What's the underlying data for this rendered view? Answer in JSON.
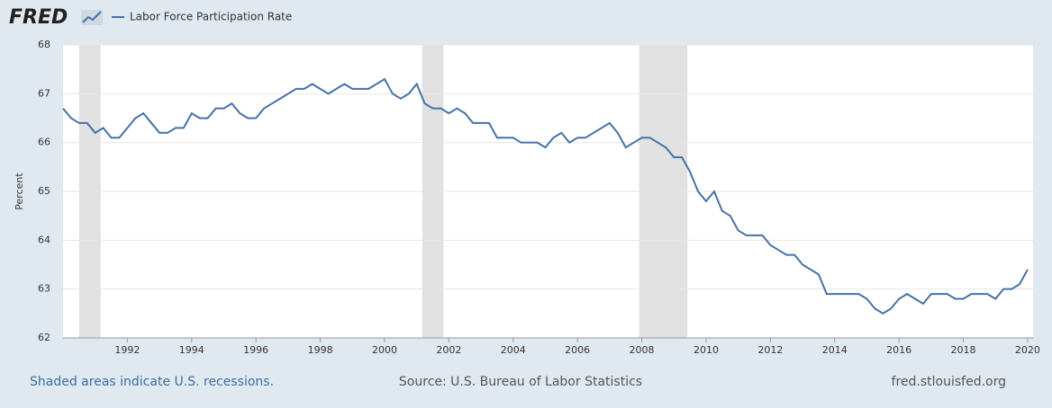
{
  "chart_data": {
    "type": "line",
    "logo": "FRED",
    "legend_position": "top-left",
    "y_label": "Percent",
    "footer_note": "Shaded areas indicate U.S. recessions.",
    "source": "Source: U.S. Bureau of Labor Statistics",
    "site": "fred.stlouisfed.org",
    "xlim": [
      1990,
      2020.17
    ],
    "xticks": [
      1992,
      1994,
      1996,
      1998,
      2000,
      2002,
      2004,
      2006,
      2008,
      2010,
      2012,
      2014,
      2016,
      2018,
      2020
    ],
    "ylim": [
      62,
      68
    ],
    "yticks": [
      62,
      63,
      64,
      65,
      66,
      67,
      68
    ],
    "grid": true,
    "recession_color": "#e1e1e1",
    "recessions": [
      [
        1990.5,
        1991.17
      ],
      [
        2001.17,
        2001.83
      ],
      [
        2007.92,
        2009.42
      ]
    ],
    "x": [
      1990,
      1990.25,
      1990.5,
      1990.75,
      1991,
      1991.25,
      1991.5,
      1991.75,
      1992,
      1992.25,
      1992.5,
      1992.75,
      1993,
      1993.25,
      1993.5,
      1993.75,
      1994,
      1994.25,
      1994.5,
      1994.75,
      1995,
      1995.25,
      1995.5,
      1995.75,
      1996,
      1996.25,
      1996.5,
      1996.75,
      1997,
      1997.25,
      1997.5,
      1997.75,
      1998,
      1998.25,
      1998.5,
      1998.75,
      1999,
      1999.25,
      1999.5,
      1999.75,
      2000,
      2000.25,
      2000.5,
      2000.75,
      2001,
      2001.25,
      2001.5,
      2001.75,
      2002,
      2002.25,
      2002.5,
      2002.75,
      2003,
      2003.25,
      2003.5,
      2003.75,
      2004,
      2004.25,
      2004.5,
      2004.75,
      2005,
      2005.25,
      2005.5,
      2005.75,
      2006,
      2006.25,
      2006.5,
      2006.75,
      2007,
      2007.25,
      2007.5,
      2007.75,
      2008,
      2008.25,
      2008.5,
      2008.75,
      2009,
      2009.25,
      2009.5,
      2009.75,
      2010,
      2010.25,
      2010.5,
      2010.75,
      2011,
      2011.25,
      2011.5,
      2011.75,
      2012,
      2012.25,
      2012.5,
      2012.75,
      2013,
      2013.25,
      2013.5,
      2013.75,
      2014,
      2014.25,
      2014.5,
      2014.75,
      2015,
      2015.25,
      2015.5,
      2015.75,
      2016,
      2016.25,
      2016.5,
      2016.75,
      2017,
      2017.25,
      2017.5,
      2017.75,
      2018,
      2018.25,
      2018.5,
      2018.75,
      2019,
      2019.25,
      2019.5,
      2019.75,
      2020
    ],
    "series": [
      {
        "name": "Labor Force Participation Rate",
        "color": "#4572a7",
        "values": [
          66.7,
          66.5,
          66.4,
          66.4,
          66.2,
          66.3,
          66.1,
          66.1,
          66.3,
          66.5,
          66.6,
          66.4,
          66.2,
          66.2,
          66.3,
          66.3,
          66.6,
          66.5,
          66.5,
          66.7,
          66.7,
          66.8,
          66.6,
          66.5,
          66.5,
          66.7,
          66.8,
          66.9,
          67.0,
          67.1,
          67.1,
          67.2,
          67.1,
          67.0,
          67.1,
          67.2,
          67.1,
          67.1,
          67.1,
          67.2,
          67.3,
          67.0,
          66.9,
          67.0,
          67.2,
          66.8,
          66.7,
          66.7,
          66.6,
          66.7,
          66.6,
          66.4,
          66.4,
          66.4,
          66.1,
          66.1,
          66.1,
          66.0,
          66.0,
          66.0,
          65.9,
          66.1,
          66.2,
          66.0,
          66.1,
          66.1,
          66.2,
          66.3,
          66.4,
          66.2,
          65.9,
          66.0,
          66.1,
          66.1,
          66.0,
          65.9,
          65.7,
          65.7,
          65.4,
          65.0,
          64.8,
          65.0,
          64.6,
          64.5,
          64.2,
          64.1,
          64.1,
          64.1,
          63.9,
          63.8,
          63.7,
          63.7,
          63.5,
          63.4,
          63.3,
          62.9,
          62.9,
          62.9,
          62.9,
          62.9,
          62.8,
          62.6,
          62.5,
          62.6,
          62.8,
          62.9,
          62.8,
          62.7,
          62.9,
          62.9,
          62.9,
          62.8,
          62.8,
          62.9,
          62.9,
          62.9,
          62.8,
          63.0,
          63.0,
          63.1,
          63.4
        ]
      }
    ]
  }
}
